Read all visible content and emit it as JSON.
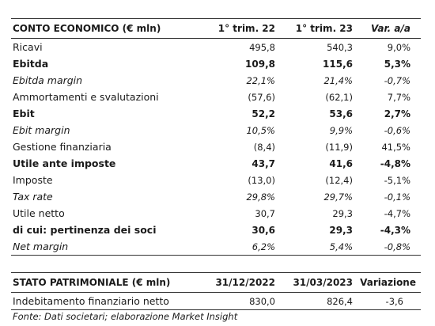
{
  "income": {
    "header": {
      "label": "CONTO ECONOMICO (€ mln)",
      "col1": "1° trim. 22",
      "col2": "1° trim. 23",
      "col3": "Var.  a/a"
    },
    "rows": [
      {
        "label": "Ricavi",
        "v1": "495,8",
        "v2": "540,3",
        "v3": "9,0%",
        "style": "normal"
      },
      {
        "label": "Ebitda",
        "v1": "109,8",
        "v2": "115,6",
        "v3": "5,3%",
        "style": "bold"
      },
      {
        "label": "Ebitda margin",
        "v1": "22,1%",
        "v2": "21,4%",
        "v3": "-0,7%",
        "style": "italic"
      },
      {
        "label": "Ammortamenti e svalutazioni",
        "v1": "(57,6)",
        "v2": "(62,1)",
        "v3": "7,7%",
        "style": "normal"
      },
      {
        "label": "Ebit",
        "v1": "52,2",
        "v2": "53,6",
        "v3": "2,7%",
        "style": "bold"
      },
      {
        "label": "Ebit margin",
        "v1": "10,5%",
        "v2": "9,9%",
        "v3": "-0,6%",
        "style": "italic"
      },
      {
        "label": "Gestione finanziaria",
        "v1": "(8,4)",
        "v2": "(11,9)",
        "v3": "41,5%",
        "style": "normal"
      },
      {
        "label": "Utile ante imposte",
        "v1": "43,7",
        "v2": "41,6",
        "v3": "-4,8%",
        "style": "bold"
      },
      {
        "label": "Imposte",
        "v1": "(13,0)",
        "v2": "(12,4)",
        "v3": "-5,1%",
        "style": "normal"
      },
      {
        "label": "Tax rate",
        "v1": "29,8%",
        "v2": "29,7%",
        "v3": "-0,1%",
        "style": "italic"
      },
      {
        "label": "Utile netto",
        "v1": "30,7",
        "v2": "29,3",
        "v3": "-4,7%",
        "style": "normal"
      },
      {
        "label": "di cui: pertinenza dei soci",
        "v1": "30,6",
        "v2": "29,3",
        "v3": "-4,3%",
        "style": "bold"
      },
      {
        "label": "Net margin",
        "v1": "6,2%",
        "v2": "5,4%",
        "v3": "-0,8%",
        "style": "italic"
      }
    ]
  },
  "balance": {
    "header": {
      "label": "STATO PATRIMONIALE (€ mln)",
      "col1": "31/12/2022",
      "col2": "31/03/2023",
      "col3": "Variazione"
    },
    "rows": [
      {
        "label": "Indebitamento finanziario netto",
        "v1": "830,0",
        "v2": "826,4",
        "v3": "-3,6"
      }
    ]
  },
  "source": "Fonte: Dati societari; elaborazione Market Insight"
}
